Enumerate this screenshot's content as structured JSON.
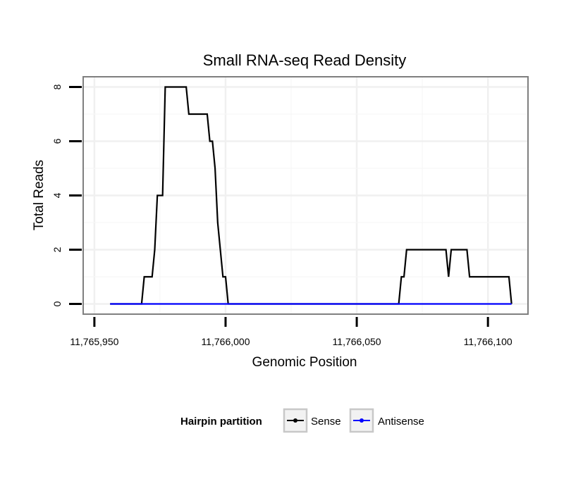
{
  "chart_data": {
    "type": "line",
    "title": "Small RNA-seq Read Density",
    "xlabel": "Genomic Position",
    "ylabel": "Total Reads",
    "xlim": [
      11765946,
      11766115
    ],
    "ylim": [
      -0.35,
      8.35
    ],
    "x_ticks": [
      11765950,
      11766000,
      11766050,
      11766100
    ],
    "x_tick_labels": [
      "11,765,950",
      "11,766,000",
      "11,766,050",
      "11,766,100"
    ],
    "y_ticks": [
      0,
      2,
      4,
      6,
      8
    ],
    "y_tick_labels": [
      "0",
      "2",
      "4",
      "6",
      "8"
    ],
    "grid": true,
    "legend": {
      "title": "Hairpin partition",
      "position": "bottom"
    },
    "series": [
      {
        "name": "Sense",
        "color": "#000000",
        "x": [
          11765956,
          11765968,
          11765969,
          11765971,
          11765972,
          11765973,
          11765974,
          11765975,
          11765976,
          11765977,
          11765978,
          11765985,
          11765986,
          11765993,
          11765994,
          11765995,
          11765996,
          11765997,
          11765998,
          11765999,
          11766000,
          11766001,
          11766002,
          11766066,
          11766067,
          11766068,
          11766069,
          11766084,
          11766085,
          11766086,
          11766092,
          11766093,
          11766108,
          11766109
        ],
        "values": [
          0,
          0,
          1,
          1,
          1,
          2,
          4,
          4,
          4,
          8,
          8,
          8,
          7,
          7,
          6,
          6,
          5,
          3,
          2,
          1,
          1,
          0,
          0,
          0,
          1,
          1,
          2,
          2,
          1,
          2,
          2,
          1,
          1,
          0
        ]
      },
      {
        "name": "Antisense",
        "color": "#0000ff",
        "x": [
          11765956,
          11766109
        ],
        "values": [
          0,
          0
        ]
      }
    ]
  }
}
